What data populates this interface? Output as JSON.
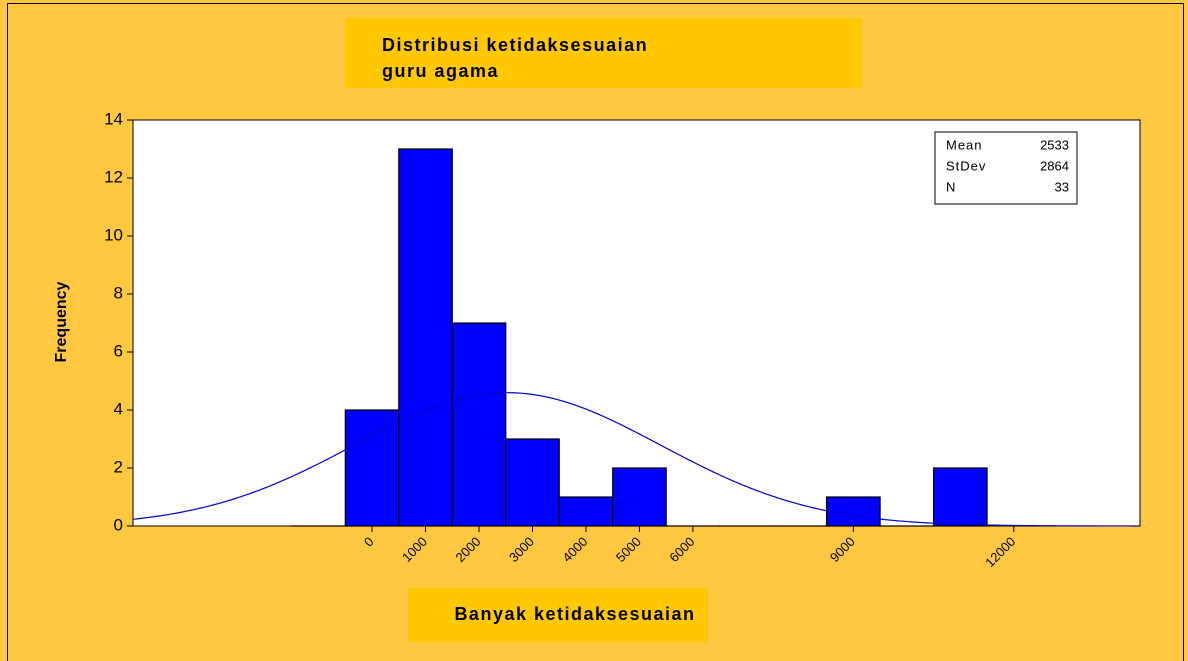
{
  "chart_data": {
    "type": "histogram",
    "title": [
      "Distribusi ketidaksesuaian",
      "guru agama"
    ],
    "xlabel": "Banyak ketidaksesuaian",
    "ylabel": "Frequency",
    "bins": [
      -1500,
      -500,
      500,
      1500,
      2500,
      3500,
      4500,
      5500,
      6500,
      7500,
      8500,
      9500,
      10500,
      11500
    ],
    "values": [
      0,
      4,
      13,
      7,
      3,
      1,
      2,
      0,
      0,
      0,
      1,
      0,
      2
    ],
    "color": "#0000ff",
    "curve_color": "#0000cc",
    "xlim": [
      -4470,
      14360
    ],
    "xticks": [
      0,
      1000,
      2000,
      3000,
      4000,
      5000,
      6000,
      9000,
      12000
    ],
    "ylim": [
      0,
      14
    ],
    "yticks": [
      0,
      2,
      4,
      6,
      8,
      10,
      12,
      14
    ],
    "stats": [
      {
        "label": "Mean",
        "value": 2533
      },
      {
        "label": "StDev",
        "value": 2864
      },
      {
        "label": "N",
        "value": 33
      }
    ]
  }
}
